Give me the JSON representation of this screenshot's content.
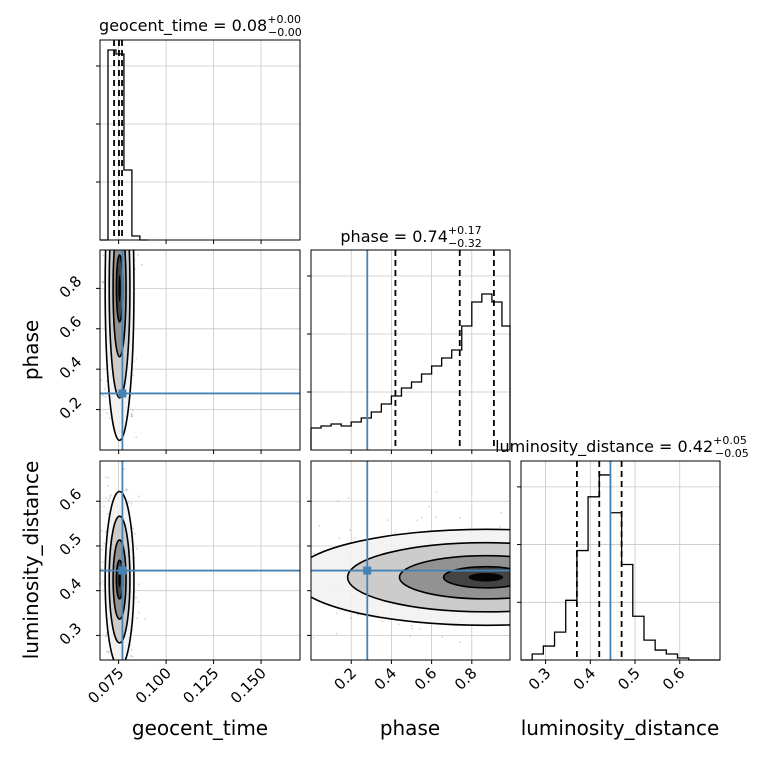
{
  "chart_data": {
    "type": "corner",
    "parameters": [
      "geocent_time",
      "phase",
      "luminosity_distance"
    ],
    "truths": {
      "geocent_time": 0.077,
      "phase": 0.28,
      "luminosity_distance": 0.445
    },
    "colors": {
      "truth": "#4682b4",
      "hist": "#000000",
      "grid": "#c8c8c8"
    },
    "titles": [
      {
        "param": "geocent_time",
        "label": "geocent_time = 0.08",
        "plus": "+0.00",
        "minus": "−0.00"
      },
      {
        "param": "phase",
        "label": "phase = 0.74",
        "plus": "+0.17",
        "minus": "−0.32"
      },
      {
        "param": "luminosity_distance",
        "label": "luminosity_distance = 0.42",
        "plus": "+0.05",
        "minus": "−0.05"
      }
    ],
    "axis_labels": {
      "x": [
        "geocent_time",
        "phase",
        "luminosity_distance"
      ],
      "y": [
        "phase",
        "luminosity_distance"
      ]
    },
    "ranges": {
      "geocent_time": [
        0.0652,
        0.1705
      ],
      "phase": [
        0.0,
        0.99
      ],
      "luminosity_distance": [
        0.245,
        0.69
      ]
    },
    "ticks": {
      "geocent_time": [
        {
          "v": 0.075,
          "label": "0.075"
        },
        {
          "v": 0.1,
          "label": "0.100"
        },
        {
          "v": 0.125,
          "label": "0.125"
        },
        {
          "v": 0.15,
          "label": "0.150"
        }
      ],
      "phase": [
        {
          "v": 0.2,
          "label": "0.2"
        },
        {
          "v": 0.4,
          "label": "0.4"
        },
        {
          "v": 0.6,
          "label": "0.6"
        },
        {
          "v": 0.8,
          "label": "0.8"
        }
      ],
      "luminosity_distance": [
        {
          "v": 0.3,
          "label": "0.3"
        },
        {
          "v": 0.4,
          "label": "0.4"
        },
        {
          "v": 0.5,
          "label": "0.5"
        },
        {
          "v": 0.6,
          "label": "0.6"
        }
      ]
    },
    "quantiles": {
      "geocent_time": [
        0.0726,
        0.0752,
        0.0768
      ],
      "phase": [
        0.42,
        0.74,
        0.91
      ],
      "luminosity_distance": [
        0.37,
        0.42,
        0.47
      ]
    },
    "histograms": {
      "geocent_time": {
        "edges": [
          0.0652,
          0.0694,
          0.0736,
          0.0778,
          0.082,
          0.0862,
          0.0904
        ],
        "counts": [
          0,
          0.95,
          0.93,
          0.35,
          0.02,
          0
        ]
      },
      "phase": {
        "edges": [
          0.0,
          0.05,
          0.1,
          0.15,
          0.2,
          0.25,
          0.3,
          0.35,
          0.4,
          0.45,
          0.5,
          0.55,
          0.6,
          0.65,
          0.7,
          0.75,
          0.8,
          0.85,
          0.9,
          0.95,
          0.99
        ],
        "counts": [
          0.11,
          0.12,
          0.13,
          0.12,
          0.14,
          0.16,
          0.19,
          0.23,
          0.27,
          0.31,
          0.34,
          0.38,
          0.42,
          0.46,
          0.5,
          0.62,
          0.74,
          0.78,
          0.74,
          0.62
        ]
      },
      "luminosity_distance": {
        "edges": [
          0.245,
          0.27,
          0.295,
          0.32,
          0.345,
          0.37,
          0.395,
          0.42,
          0.445,
          0.47,
          0.495,
          0.52,
          0.545,
          0.57,
          0.595,
          0.62,
          0.645,
          0.69
        ],
        "counts": [
          0.0,
          0.03,
          0.07,
          0.14,
          0.3,
          0.55,
          0.82,
          0.93,
          0.74,
          0.48,
          0.22,
          0.1,
          0.05,
          0.03,
          0.01,
          0.0,
          0.0
        ]
      }
    },
    "contour_centers": {
      "phase_vs_geocent_time": [
        0.0755,
        0.8
      ],
      "luminosity_distance_vs_geocent_time": [
        0.0755,
        0.425
      ],
      "luminosity_distance_vs_phase": [
        0.87,
        0.43
      ]
    }
  }
}
